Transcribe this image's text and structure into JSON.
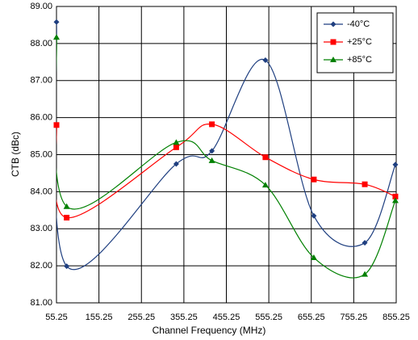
{
  "chart_data": {
    "type": "line",
    "x_label": "Channel Frequency (MHz)",
    "y_label": "CTB (dBc)",
    "x": [
      55.25,
      79.25,
      337.25,
      421.25,
      547.25,
      661.25,
      781.25,
      853.25
    ],
    "series": [
      {
        "name": "-40°C",
        "color": "#1f3f80",
        "marker": "diamond",
        "values": [
          88.58,
          81.99,
          84.75,
          85.1,
          87.55,
          83.35,
          82.62,
          84.73
        ]
      },
      {
        "name": "+25°C",
        "color": "#ff0000",
        "marker": "square",
        "values": [
          85.8,
          83.3,
          85.2,
          85.82,
          84.93,
          84.33,
          84.2,
          83.87
        ]
      },
      {
        "name": "+85°C",
        "color": "#008000",
        "marker": "triangle",
        "values": [
          88.17,
          83.6,
          85.33,
          84.84,
          84.18,
          82.22,
          81.77,
          83.76
        ]
      }
    ],
    "xlim": [
      55.25,
      855.25
    ],
    "xticks": [
      55.25,
      155.25,
      255.25,
      355.25,
      455.25,
      555.25,
      655.25,
      755.25,
      855.25
    ],
    "ylim": [
      81,
      89
    ],
    "yticks": [
      {
        "value": 81,
        "label": "81.00"
      },
      {
        "value": 82,
        "label": "82.00"
      },
      {
        "value": 83,
        "label": "83.00"
      },
      {
        "value": 84,
        "label": "84.00"
      },
      {
        "value": 85,
        "label": "85.00"
      },
      {
        "value": 86,
        "label": "86.00"
      },
      {
        "value": 87,
        "label": "87.00"
      },
      {
        "value": 88,
        "label": "88.00"
      },
      {
        "value": 89,
        "label": "89.00"
      }
    ],
    "grid": true,
    "legend": "top-right"
  }
}
